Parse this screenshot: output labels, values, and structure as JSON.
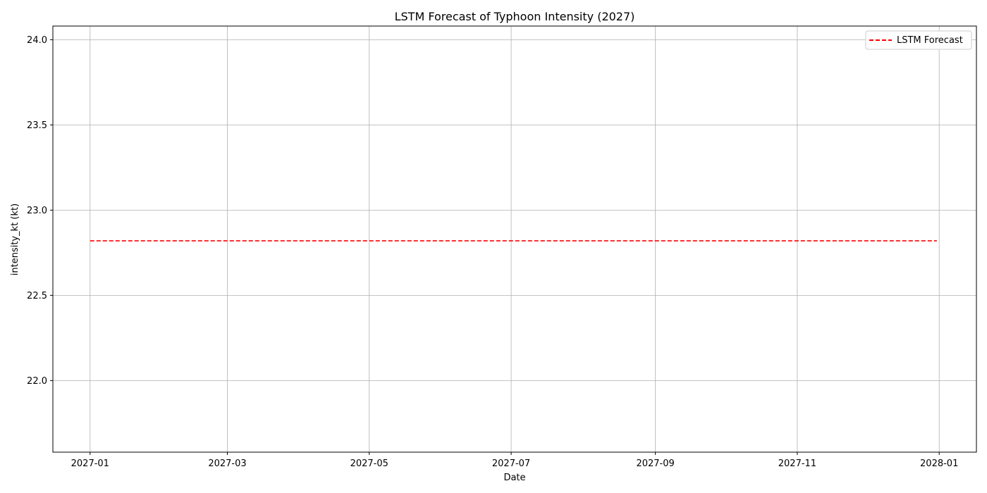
{
  "chart_data": {
    "type": "line",
    "title": "LSTM Forecast of Typhoon Intensity (2027)",
    "xlabel": "Date",
    "ylabel": "intensity_kt (kt)",
    "xlim": [
      "2026-12-16",
      "2028-01-17"
    ],
    "ylim": [
      21.58,
      24.08
    ],
    "x_ticks": [
      "2027-01-01",
      "2027-03-01",
      "2027-05-01",
      "2027-07-01",
      "2027-09-01",
      "2027-11-01",
      "2028-01-01"
    ],
    "x_tick_labels": [
      "2027-01",
      "2027-03",
      "2027-05",
      "2027-07",
      "2027-09",
      "2027-11",
      "2028-01"
    ],
    "y_ticks": [
      22.0,
      22.5,
      23.0,
      23.5,
      24.0
    ],
    "y_tick_labels": [
      "22.0",
      "22.5",
      "23.0",
      "23.5",
      "24.0"
    ],
    "grid": true,
    "legend_position": "top-right",
    "series": [
      {
        "name": "LSTM Forecast",
        "color": "#ff0000",
        "line_style": "dashed",
        "x": [
          "2027-01-01",
          "2027-12-31"
        ],
        "y": [
          22.82,
          22.82
        ]
      }
    ]
  }
}
